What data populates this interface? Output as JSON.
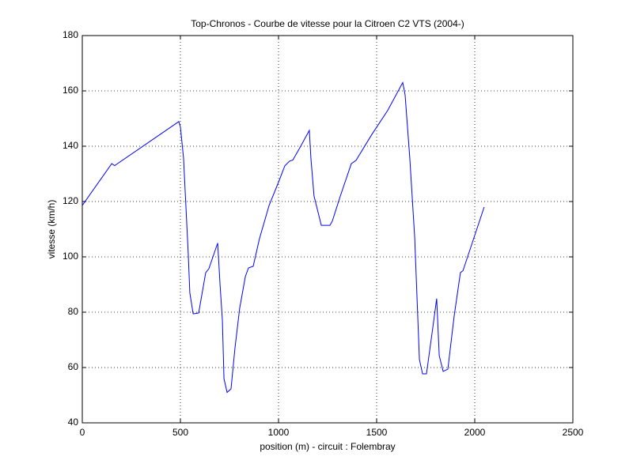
{
  "chart_data": {
    "type": "line",
    "title": "Top-Chronos - Courbe de vitesse pour la Citroen C2 VTS (2004-)",
    "x_label": "position (m) - circuit : Folembray",
    "y_label": "vitesse (km/h)",
    "xlim": [
      0,
      2500
    ],
    "ylim": [
      40,
      180
    ],
    "xticks": [
      0,
      500,
      1000,
      1500,
      2000,
      2500
    ],
    "yticks": [
      40,
      60,
      80,
      100,
      120,
      140,
      160,
      180
    ],
    "grid": true,
    "x": [
      0,
      150,
      165,
      492,
      500,
      516,
      540,
      548,
      565,
      593,
      629,
      645,
      690,
      702,
      714,
      722,
      738,
      758,
      778,
      802,
      831,
      847,
      871,
      903,
      952,
      1000,
      1032,
      1056,
      1073,
      1113,
      1157,
      1165,
      1181,
      1218,
      1262,
      1274,
      1315,
      1371,
      1395,
      1476,
      1556,
      1633,
      1645,
      1669,
      1694,
      1718,
      1734,
      1754,
      1786,
      1806,
      1819,
      1839,
      1863,
      1895,
      1927,
      1940,
      2048
    ],
    "series": [
      {
        "color": "#0000ff",
        "values": [
          118.6,
          133.7,
          133,
          148.9,
          147,
          135.7,
          101,
          87,
          79.4,
          79.7,
          94.3,
          95.7,
          105,
          90,
          77,
          56,
          51,
          52.3,
          67,
          81.4,
          92.9,
          96,
          96.6,
          106.6,
          118.6,
          127,
          132.9,
          134.6,
          135,
          140,
          145.7,
          135.7,
          122,
          111.4,
          111.4,
          112.9,
          122,
          133.7,
          134.9,
          144.3,
          152.9,
          163,
          158.6,
          135.7,
          107,
          62.9,
          57.7,
          57.7,
          74.3,
          84.9,
          64.3,
          58.6,
          59.4,
          78.6,
          94.3,
          95,
          118
        ]
      }
    ]
  }
}
